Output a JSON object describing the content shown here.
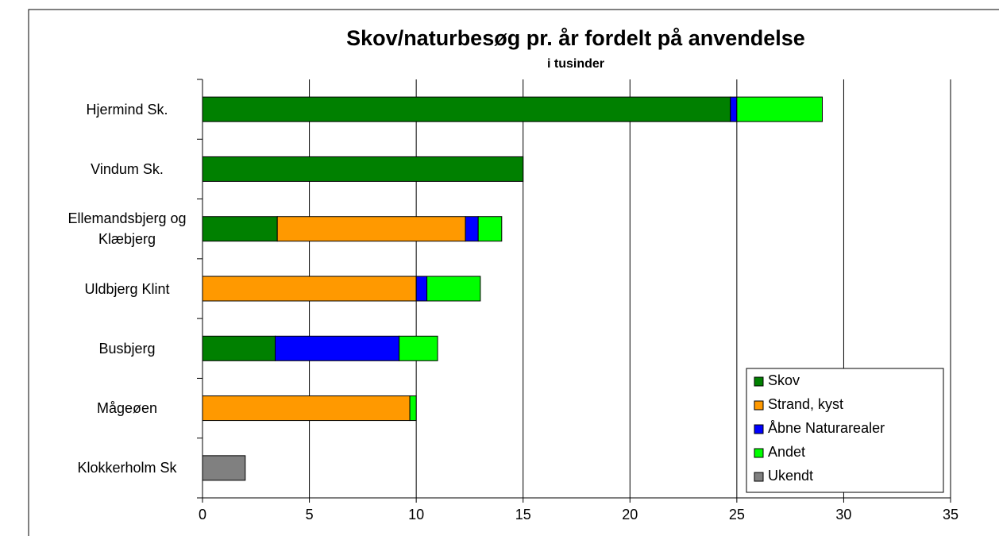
{
  "chart_data": {
    "type": "stacked-bar-horizontal",
    "title": "Skov/naturbesøg pr. år fordelt på anvendelse",
    "subtitle": "i tusinder",
    "categories": [
      "Hjermind Sk.",
      "Vindum Sk.",
      "Ellemandsbjerg og Klæbjerg",
      "Uldbjerg Klint",
      "Busbjerg",
      "Mågeøen",
      "Klokkerholm Sk"
    ],
    "series": [
      {
        "name": "Skov",
        "color": "#008000",
        "values": [
          24.7,
          15.0,
          3.5,
          0,
          3.4,
          0,
          0
        ]
      },
      {
        "name": "Strand, kyst",
        "color": "#ff9900",
        "values": [
          0,
          0,
          8.8,
          10.0,
          0,
          9.7,
          0
        ]
      },
      {
        "name": "Åbne Naturarealer",
        "color": "#0000ff",
        "values": [
          0.3,
          0,
          0.6,
          0.5,
          5.8,
          0,
          0
        ]
      },
      {
        "name": "Andet",
        "color": "#00ff00",
        "values": [
          4.0,
          0,
          1.1,
          2.5,
          1.8,
          0.3,
          0
        ]
      },
      {
        "name": "Ukendt",
        "color": "#808080",
        "values": [
          0,
          0,
          0,
          0,
          0,
          0,
          2.0
        ]
      }
    ],
    "xlim": [
      0,
      35
    ],
    "xticks": [
      0,
      5,
      10,
      15,
      20,
      25,
      30,
      35
    ],
    "grid": true,
    "legend": "lower right"
  }
}
